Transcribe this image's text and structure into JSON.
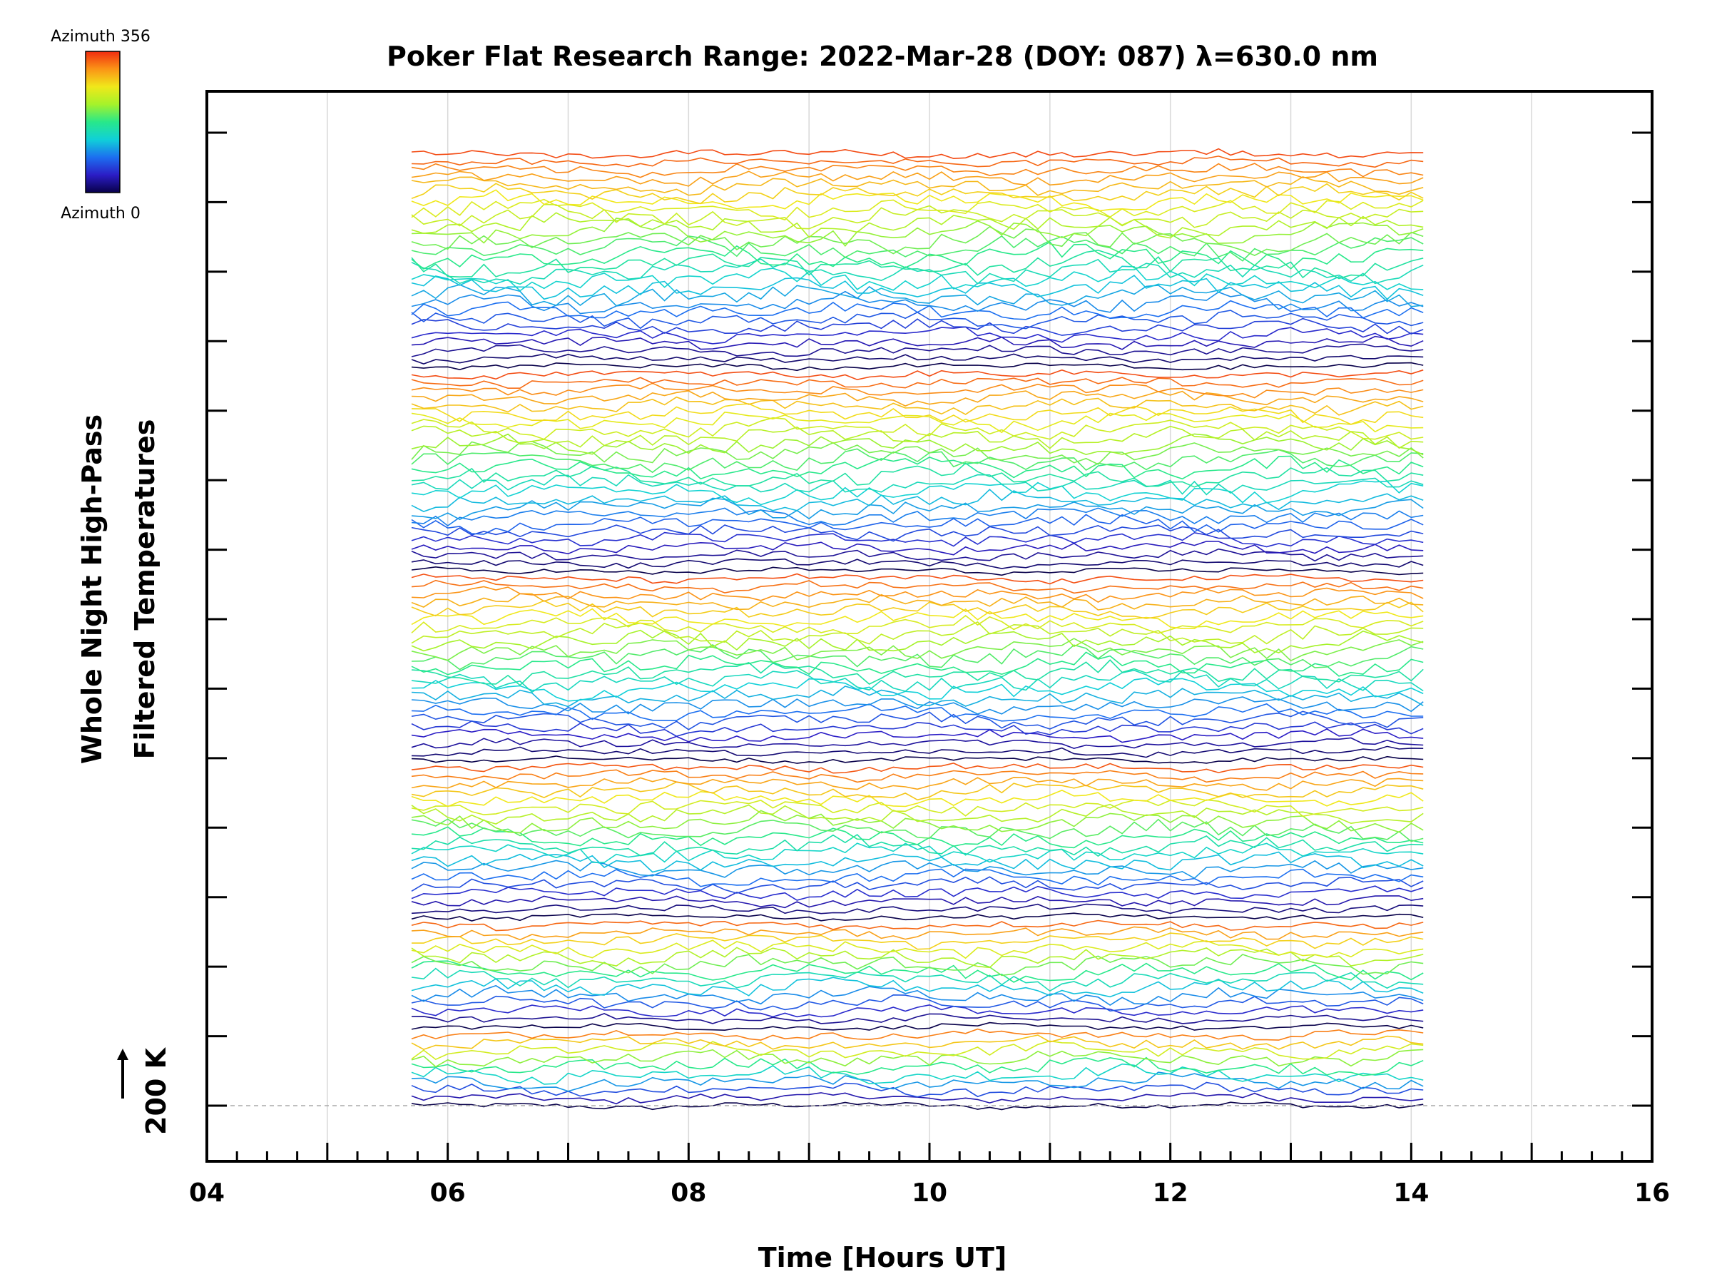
{
  "chart_data": {
    "type": "line",
    "title": "Poker Flat Research Range: 2022-Mar-28 (DOY: 087) λ=630.0 nm",
    "xlabel": "Time [Hours UT]",
    "ylabel_line1": "Whole Night High-Pass",
    "ylabel_line2": "Filtered Temperatures",
    "xlim": [
      4,
      16
    ],
    "x_ticks": [
      "04",
      "06",
      "08",
      "10",
      "12",
      "14",
      "16"
    ],
    "x_minor_step": 0.25,
    "x_gridlines": [
      5,
      6,
      7,
      8,
      9,
      10,
      11,
      12,
      13,
      14,
      15
    ],
    "scale_label": "200 K",
    "data_time_range": [
      5.7,
      14.1
    ],
    "time_step_hours": 0.1,
    "colorbar": {
      "top_label": "Azimuth 356",
      "bottom_label": "Azimuth 0",
      "azimuth_range": [
        0,
        356
      ],
      "stops": [
        "#08004a",
        "#2b1dc6",
        "#1c6ff0",
        "#10d0d8",
        "#28e88a",
        "#a6f22a",
        "#f0e81a",
        "#fb9416",
        "#f02c10"
      ]
    },
    "series_description": "Stacked high-pass filtered temperature traces for each azimuth/zenith look direction, offset vertically, colored by azimuth.",
    "rings": [
      {
        "name": "ring-1",
        "count": 10
      },
      {
        "name": "ring-2",
        "count": 14
      },
      {
        "name": "ring-3",
        "count": 20
      },
      {
        "name": "ring-4",
        "count": 24
      },
      {
        "name": "ring-5",
        "count": 26
      },
      {
        "name": "ring-6",
        "count": 28
      }
    ],
    "y_major_ticks": 15
  }
}
